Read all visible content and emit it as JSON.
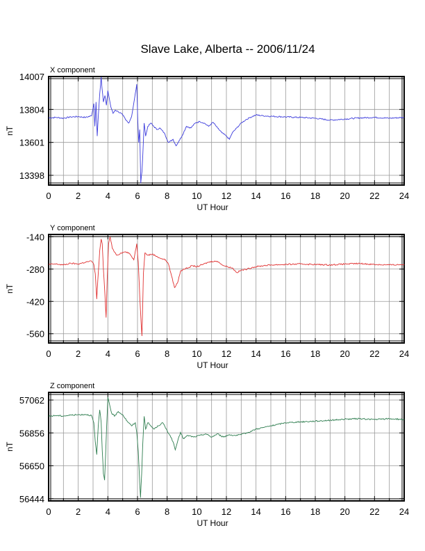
{
  "title": "Slave Lake, Alberta -- 2006/11/24",
  "chart_data": [
    {
      "type": "line",
      "panel_label": "X component",
      "xlabel": "UT Hour",
      "ylabel": "nT",
      "xlim": [
        0,
        24
      ],
      "ylim": [
        13338,
        14007
      ],
      "x_ticks": [
        0,
        2,
        4,
        6,
        8,
        10,
        12,
        14,
        16,
        18,
        20,
        22,
        24
      ],
      "y_ticks": [
        13398,
        13601,
        13804,
        14007
      ],
      "grid": true,
      "color": "#3b3bdc",
      "series": [
        {
          "x": [
            0,
            0.5,
            1,
            1.5,
            2,
            2.5,
            2.9,
            3.05,
            3.12,
            3.2,
            3.28,
            3.35,
            3.45,
            3.55,
            3.6,
            3.7,
            3.8,
            3.9,
            4.0,
            4.1,
            4.2,
            4.35,
            4.5,
            4.7,
            4.9,
            5.0,
            5.2,
            5.4,
            5.6,
            5.8,
            5.95,
            6.02,
            6.08,
            6.15,
            6.22,
            6.3,
            6.38,
            6.45,
            6.55,
            6.7,
            6.9,
            7.1,
            7.3,
            7.5,
            7.8,
            8.1,
            8.4,
            8.6,
            8.8,
            9.0,
            9.3,
            9.6,
            9.9,
            10.2,
            10.5,
            10.8,
            11.1,
            11.4,
            11.7,
            12.0,
            12.2,
            12.4,
            12.7,
            13.0,
            13.3,
            13.6,
            14.0,
            14.5,
            15,
            16,
            17,
            18,
            19,
            20,
            21,
            22,
            23,
            24
          ],
          "y": [
            13752,
            13755,
            13750,
            13758,
            13760,
            13755,
            13765,
            13840,
            13700,
            13850,
            13640,
            13760,
            13900,
            14005,
            13940,
            13850,
            13890,
            13830,
            13920,
            13870,
            13820,
            13780,
            13800,
            13790,
            13780,
            13770,
            13740,
            13720,
            13760,
            13870,
            13960,
            13740,
            13600,
            13680,
            13350,
            13420,
            13570,
            13720,
            13640,
            13700,
            13720,
            13700,
            13680,
            13690,
            13660,
            13600,
            13620,
            13580,
            13610,
            13640,
            13700,
            13690,
            13720,
            13730,
            13720,
            13700,
            13725,
            13690,
            13660,
            13640,
            13620,
            13660,
            13690,
            13720,
            13740,
            13755,
            13770,
            13765,
            13762,
            13758,
            13755,
            13750,
            13738,
            13745,
            13752,
            13755,
            13750,
            13755
          ]
        }
      ]
    },
    {
      "type": "line",
      "panel_label": "Y component",
      "xlabel": "UT Hour",
      "ylabel": "nT",
      "xlim": [
        0,
        24
      ],
      "ylim": [
        -600,
        -130
      ],
      "x_ticks": [
        0,
        2,
        4,
        6,
        8,
        10,
        12,
        14,
        16,
        18,
        20,
        22,
        24
      ],
      "y_ticks": [
        -140,
        -280,
        -420,
        -560
      ],
      "grid": true,
      "color": "#e03030",
      "series": [
        {
          "x": [
            0,
            0.5,
            1,
            1.5,
            2,
            2.5,
            2.9,
            3.05,
            3.15,
            3.25,
            3.32,
            3.45,
            3.55,
            3.62,
            3.7,
            3.8,
            3.88,
            3.95,
            4.05,
            4.15,
            4.3,
            4.6,
            4.9,
            5.2,
            5.5,
            5.75,
            5.95,
            6.05,
            6.12,
            6.2,
            6.3,
            6.4,
            6.5,
            6.7,
            7.0,
            7.3,
            7.6,
            7.9,
            8.1,
            8.3,
            8.5,
            8.7,
            8.9,
            9.1,
            9.4,
            9.7,
            10.0,
            10.4,
            10.8,
            11.2,
            11.5,
            11.8,
            12.1,
            12.4,
            12.7,
            13.0,
            13.4,
            13.8,
            14.5,
            15,
            16,
            17,
            18,
            19,
            20,
            21,
            22,
            23,
            24
          ],
          "y": [
            -260,
            -258,
            -262,
            -255,
            -258,
            -250,
            -245,
            -260,
            -300,
            -410,
            -330,
            -200,
            -150,
            -170,
            -280,
            -390,
            -490,
            -330,
            -170,
            -140,
            -190,
            -220,
            -210,
            -205,
            -215,
            -240,
            -170,
            -250,
            -350,
            -460,
            -570,
            -300,
            -210,
            -220,
            -215,
            -225,
            -235,
            -240,
            -260,
            -310,
            -360,
            -340,
            -290,
            -280,
            -275,
            -265,
            -270,
            -260,
            -250,
            -245,
            -250,
            -265,
            -270,
            -275,
            -295,
            -285,
            -280,
            -272,
            -265,
            -262,
            -260,
            -258,
            -260,
            -262,
            -258,
            -256,
            -260,
            -262,
            -260
          ]
        }
      ]
    },
    {
      "type": "line",
      "panel_label": "Z component",
      "xlabel": "UT Hour",
      "ylabel": "nT",
      "xlim": [
        0,
        24
      ],
      "ylim": [
        56430,
        57110
      ],
      "x_ticks": [
        0,
        2,
        4,
        6,
        8,
        10,
        12,
        14,
        16,
        18,
        20,
        22,
        24
      ],
      "y_ticks": [
        56444,
        56650,
        56856,
        57062
      ],
      "grid": true,
      "color": "#2e7d4f",
      "series": [
        {
          "x": [
            0,
            0.5,
            1,
            1.5,
            2,
            2.5,
            2.9,
            3.05,
            3.15,
            3.25,
            3.35,
            3.45,
            3.55,
            3.62,
            3.7,
            3.78,
            3.85,
            3.92,
            4.0,
            4.1,
            4.25,
            4.45,
            4.7,
            5.0,
            5.3,
            5.6,
            5.85,
            5.95,
            6.05,
            6.12,
            6.2,
            6.28,
            6.35,
            6.45,
            6.55,
            6.7,
            6.9,
            7.1,
            7.4,
            7.7,
            8.0,
            8.2,
            8.4,
            8.55,
            8.7,
            8.9,
            9.1,
            9.4,
            9.8,
            10.2,
            10.6,
            11.0,
            11.4,
            11.8,
            12.2,
            12.6,
            13.0,
            13.5,
            14.0,
            14.5,
            15.0,
            15.5,
            16.0,
            17.0,
            18.0,
            19.0,
            20.0,
            21.0,
            22.0,
            23.0,
            24.0
          ],
          "y": [
            56960,
            56965,
            56962,
            56968,
            56970,
            56972,
            56965,
            56920,
            56800,
            56720,
            56900,
            57000,
            56920,
            56750,
            56600,
            56560,
            56720,
            56900,
            57080,
            57040,
            56980,
            56960,
            56990,
            56970,
            56930,
            56900,
            56920,
            56860,
            56740,
            56600,
            56450,
            56600,
            56780,
            56960,
            56880,
            56920,
            56900,
            56880,
            56900,
            56920,
            56870,
            56840,
            56800,
            56750,
            56800,
            56860,
            56820,
            56840,
            56830,
            56840,
            56850,
            56830,
            56850,
            56830,
            56845,
            56840,
            56845,
            56860,
            56880,
            56890,
            56900,
            56910,
            56920,
            56925,
            56930,
            56935,
            56942,
            56945,
            56940,
            56945,
            56940
          ]
        }
      ]
    }
  ]
}
